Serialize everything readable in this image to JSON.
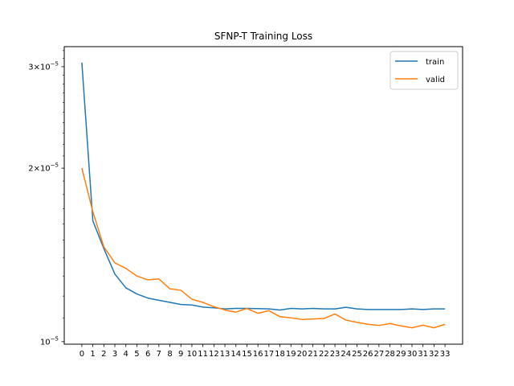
{
  "chart_data": {
    "type": "line",
    "title": "SFNP-T Training Loss",
    "xlabel": "",
    "ylabel": "",
    "yscale": "log",
    "x": [
      0,
      1,
      2,
      3,
      4,
      5,
      6,
      7,
      8,
      9,
      10,
      11,
      12,
      13,
      14,
      15,
      16,
      17,
      18,
      19,
      20,
      21,
      22,
      23,
      24,
      25,
      26,
      27,
      28,
      29,
      30,
      31,
      32,
      33
    ],
    "xtick_labels": [
      "0",
      "1",
      "2",
      "3",
      "4",
      "5",
      "6",
      "7",
      "8",
      "9",
      "10",
      "11",
      "12",
      "13",
      "14",
      "15",
      "16",
      "17",
      "18",
      "19",
      "20",
      "21",
      "22",
      "23",
      "24",
      "25",
      "26",
      "27",
      "28",
      "29",
      "30",
      "31",
      "32",
      "33"
    ],
    "ylim": [
      9.9e-06,
      3.25e-05
    ],
    "ytick_values": [
      1e-05,
      2e-05,
      3e-05
    ],
    "ytick_labels": [
      {
        "mant": "10",
        "exp": "−5"
      },
      {
        "mant": "2×10",
        "exp": "−5"
      },
      {
        "mant": "3×10",
        "exp": "−5"
      }
    ],
    "grid": false,
    "legend_position": "top-right",
    "series": [
      {
        "name": "train",
        "color": "#1f77b4",
        "values": [
          3.05e-05,
          1.62e-05,
          1.45e-05,
          1.31e-05,
          1.24e-05,
          1.21e-05,
          1.19e-05,
          1.18e-05,
          1.17e-05,
          1.16e-05,
          1.158e-05,
          1.148e-05,
          1.145e-05,
          1.14e-05,
          1.142e-05,
          1.142e-05,
          1.141e-05,
          1.14e-05,
          1.135e-05,
          1.142e-05,
          1.14e-05,
          1.142e-05,
          1.14e-05,
          1.14e-05,
          1.147e-05,
          1.14e-05,
          1.137e-05,
          1.137e-05,
          1.137e-05,
          1.137e-05,
          1.14e-05,
          1.137e-05,
          1.14e-05,
          1.14e-05
        ]
      },
      {
        "name": "valid",
        "color": "#ff7f0e",
        "values": [
          2e-05,
          1.68e-05,
          1.46e-05,
          1.37e-05,
          1.34e-05,
          1.3e-05,
          1.28e-05,
          1.285e-05,
          1.235e-05,
          1.228e-05,
          1.185e-05,
          1.17e-05,
          1.15e-05,
          1.135e-05,
          1.125e-05,
          1.142e-05,
          1.12e-05,
          1.132e-05,
          1.105e-05,
          1.1e-05,
          1.093e-05,
          1.095e-05,
          1.097e-05,
          1.117e-05,
          1.09e-05,
          1.08e-05,
          1.072e-05,
          1.067e-05,
          1.075e-05,
          1.065e-05,
          1.057e-05,
          1.068e-05,
          1.057e-05,
          1.072e-05
        ]
      }
    ]
  }
}
